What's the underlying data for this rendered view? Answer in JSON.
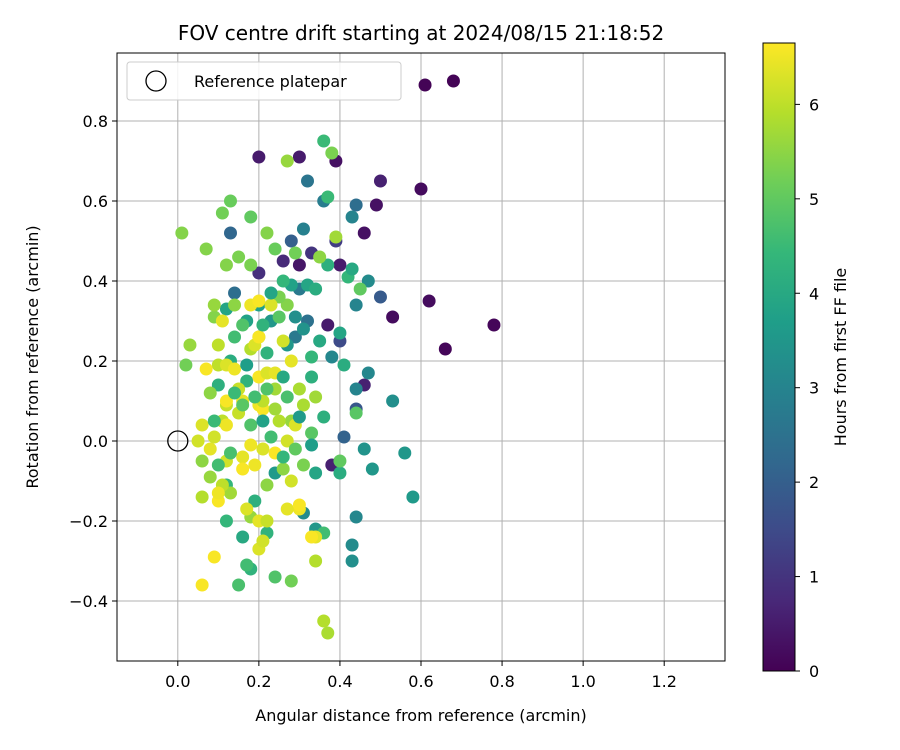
{
  "chart_data": {
    "type": "scatter",
    "title": "FOV centre drift starting at 2024/08/15 21:18:52",
    "xlabel": "Angular distance from reference (arcmin)",
    "ylabel": "Rotation from reference (arcmin)",
    "xlim": [
      -0.15,
      1.35
    ],
    "ylim": [
      -0.55,
      0.97
    ],
    "xticks": [
      0.0,
      0.2,
      0.4,
      0.6,
      0.8,
      1.0,
      1.2
    ],
    "xtick_labels": [
      "0.0",
      "0.2",
      "0.4",
      "0.6",
      "0.8",
      "1.0",
      "1.2"
    ],
    "yticks": [
      -0.4,
      -0.2,
      0.0,
      0.2,
      0.4,
      0.6,
      0.8
    ],
    "ytick_labels": [
      "−0.4",
      "−0.2",
      "0.0",
      "0.2",
      "0.4",
      "0.6",
      "0.8"
    ],
    "grid": true,
    "legend": {
      "position": "upper-left",
      "label": "Reference platepar"
    },
    "reference_point": {
      "x": 0.0,
      "y": 0.0
    },
    "colorbar": {
      "label": "Hours from first FF file",
      "colormap": "viridis",
      "range": [
        0,
        6.65
      ],
      "ticks": [
        0,
        1,
        2,
        3,
        4,
        5,
        6
      ],
      "tick_labels": [
        "0",
        "1",
        "2",
        "3",
        "4",
        "5",
        "6"
      ]
    },
    "points": [
      {
        "x": 0.61,
        "y": 0.89,
        "t": 0.05
      },
      {
        "x": 0.68,
        "y": 0.9,
        "t": 0.05
      },
      {
        "x": 0.78,
        "y": 0.29,
        "t": 0.1
      },
      {
        "x": 0.66,
        "y": 0.23,
        "t": 0.1
      },
      {
        "x": 0.62,
        "y": 0.35,
        "t": 0.2
      },
      {
        "x": 0.6,
        "y": 0.63,
        "t": 0.2
      },
      {
        "x": 0.53,
        "y": 0.31,
        "t": 0.2
      },
      {
        "x": 0.49,
        "y": 0.59,
        "t": 0.3
      },
      {
        "x": 0.46,
        "y": 0.52,
        "t": 0.3
      },
      {
        "x": 0.39,
        "y": 0.7,
        "t": 0.3
      },
      {
        "x": 0.5,
        "y": 0.65,
        "t": 0.6
      },
      {
        "x": 0.2,
        "y": 0.71,
        "t": 0.5
      },
      {
        "x": 0.3,
        "y": 0.71,
        "t": 0.5
      },
      {
        "x": 0.3,
        "y": 0.44,
        "t": 0.4
      },
      {
        "x": 0.37,
        "y": 0.29,
        "t": 0.5
      },
      {
        "x": 0.4,
        "y": 0.44,
        "t": 0.5
      },
      {
        "x": 0.46,
        "y": 0.14,
        "t": 0.6
      },
      {
        "x": 0.38,
        "y": -0.06,
        "t": 0.6
      },
      {
        "x": 0.26,
        "y": 0.45,
        "t": 0.8
      },
      {
        "x": 0.2,
        "y": 0.42,
        "t": 0.9
      },
      {
        "x": 0.33,
        "y": 0.47,
        "t": 1.0
      },
      {
        "x": 0.39,
        "y": 0.5,
        "t": 1.2
      },
      {
        "x": 0.4,
        "y": 0.25,
        "t": 1.5
      },
      {
        "x": 0.44,
        "y": 0.08,
        "t": 1.8
      },
      {
        "x": 0.41,
        "y": 0.01,
        "t": 2.1
      },
      {
        "x": 0.5,
        "y": 0.36,
        "t": 1.9
      },
      {
        "x": 0.13,
        "y": 0.52,
        "t": 2.2
      },
      {
        "x": 0.28,
        "y": 0.5,
        "t": 2.0
      },
      {
        "x": 0.14,
        "y": 0.37,
        "t": 2.4
      },
      {
        "x": 0.44,
        "y": 0.59,
        "t": 2.4
      },
      {
        "x": 0.32,
        "y": 0.65,
        "t": 2.6
      },
      {
        "x": 0.36,
        "y": 0.6,
        "t": 2.8
      },
      {
        "x": 0.31,
        "y": 0.53,
        "t": 2.9
      },
      {
        "x": 0.3,
        "y": 0.38,
        "t": 2.7
      },
      {
        "x": 0.29,
        "y": 0.26,
        "t": 2.7
      },
      {
        "x": 0.32,
        "y": 0.3,
        "t": 2.5
      },
      {
        "x": 0.44,
        "y": 0.34,
        "t": 3.0
      },
      {
        "x": 0.47,
        "y": 0.4,
        "t": 3.2
      },
      {
        "x": 0.43,
        "y": 0.56,
        "t": 3.0
      },
      {
        "x": 0.38,
        "y": 0.21,
        "t": 3.1
      },
      {
        "x": 0.44,
        "y": 0.13,
        "t": 3.0
      },
      {
        "x": 0.47,
        "y": 0.17,
        "t": 3.1
      },
      {
        "x": 0.53,
        "y": 0.1,
        "t": 3.3
      },
      {
        "x": 0.56,
        "y": -0.03,
        "t": 3.5
      },
      {
        "x": 0.58,
        "y": -0.14,
        "t": 3.6
      },
      {
        "x": 0.48,
        "y": -0.07,
        "t": 3.5
      },
      {
        "x": 0.46,
        "y": -0.02,
        "t": 3.4
      },
      {
        "x": 0.44,
        "y": -0.19,
        "t": 3.1
      },
      {
        "x": 0.43,
        "y": -0.26,
        "t": 3.2
      },
      {
        "x": 0.43,
        "y": -0.3,
        "t": 3.3
      },
      {
        "x": 0.34,
        "y": -0.22,
        "t": 3.5
      },
      {
        "x": 0.31,
        "y": -0.18,
        "t": 3.2
      },
      {
        "x": 0.24,
        "y": -0.08,
        "t": 3.6
      },
      {
        "x": 0.27,
        "y": 0.24,
        "t": 3.5
      },
      {
        "x": 0.23,
        "y": 0.3,
        "t": 3.5
      },
      {
        "x": 0.2,
        "y": 0.34,
        "t": 3.7
      },
      {
        "x": 0.17,
        "y": 0.3,
        "t": 3.8
      },
      {
        "x": 0.12,
        "y": 0.33,
        "t": 3.9
      },
      {
        "x": 0.28,
        "y": 0.39,
        "t": 3.8
      },
      {
        "x": 0.32,
        "y": 0.39,
        "t": 3.9
      },
      {
        "x": 0.35,
        "y": 0.25,
        "t": 4.0
      },
      {
        "x": 0.33,
        "y": 0.16,
        "t": 4.2
      },
      {
        "x": 0.41,
        "y": 0.19,
        "t": 4.1
      },
      {
        "x": 0.36,
        "y": 0.06,
        "t": 4.2
      },
      {
        "x": 0.34,
        "y": -0.08,
        "t": 3.9
      },
      {
        "x": 0.4,
        "y": -0.08,
        "t": 4.1
      },
      {
        "x": 0.37,
        "y": 0.44,
        "t": 4.2
      },
      {
        "x": 0.36,
        "y": 0.75,
        "t": 4.5
      },
      {
        "x": 0.37,
        "y": 0.61,
        "t": 4.5
      },
      {
        "x": 0.42,
        "y": 0.41,
        "t": 4.4
      },
      {
        "x": 0.43,
        "y": 0.43,
        "t": 4.0
      },
      {
        "x": 0.4,
        "y": 0.27,
        "t": 3.9
      },
      {
        "x": 0.33,
        "y": 0.21,
        "t": 4.4
      },
      {
        "x": 0.22,
        "y": 0.22,
        "t": 4.3
      },
      {
        "x": 0.17,
        "y": 0.15,
        "t": 4.3
      },
      {
        "x": 0.13,
        "y": 0.2,
        "t": 4.1
      },
      {
        "x": 0.1,
        "y": 0.14,
        "t": 4.2
      },
      {
        "x": 0.12,
        "y": -0.11,
        "t": 4.4
      },
      {
        "x": 0.19,
        "y": -0.15,
        "t": 4.2
      },
      {
        "x": 0.16,
        "y": -0.24,
        "t": 4.0
      },
      {
        "x": 0.18,
        "y": -0.32,
        "t": 4.3
      },
      {
        "x": 0.17,
        "y": -0.31,
        "t": 4.6
      },
      {
        "x": 0.12,
        "y": -0.2,
        "t": 4.4
      },
      {
        "x": 0.22,
        "y": -0.23,
        "t": 4.3
      },
      {
        "x": 0.15,
        "y": -0.36,
        "t": 4.7
      },
      {
        "x": 0.24,
        "y": -0.34,
        "t": 4.8
      },
      {
        "x": 0.28,
        "y": -0.35,
        "t": 5.2
      },
      {
        "x": 0.36,
        "y": -0.23,
        "t": 4.6
      },
      {
        "x": 0.4,
        "y": -0.05,
        "t": 5.0
      },
      {
        "x": 0.44,
        "y": 0.07,
        "t": 4.9
      },
      {
        "x": 0.45,
        "y": 0.38,
        "t": 5.0
      },
      {
        "x": 0.38,
        "y": 0.72,
        "t": 5.3
      },
      {
        "x": 0.27,
        "y": 0.7,
        "t": 5.6
      },
      {
        "x": 0.18,
        "y": 0.56,
        "t": 5.0
      },
      {
        "x": 0.13,
        "y": 0.6,
        "t": 5.1
      },
      {
        "x": 0.11,
        "y": 0.57,
        "t": 5.2
      },
      {
        "x": 0.24,
        "y": 0.48,
        "t": 5.1
      },
      {
        "x": 0.29,
        "y": 0.47,
        "t": 5.2
      },
      {
        "x": 0.07,
        "y": 0.48,
        "t": 5.4
      },
      {
        "x": 0.01,
        "y": 0.52,
        "t": 5.4
      },
      {
        "x": 0.15,
        "y": 0.46,
        "t": 5.3
      },
      {
        "x": 0.12,
        "y": 0.44,
        "t": 5.4
      },
      {
        "x": 0.18,
        "y": 0.44,
        "t": 5.3
      },
      {
        "x": 0.22,
        "y": 0.52,
        "t": 5.4
      },
      {
        "x": 0.35,
        "y": 0.46,
        "t": 5.5
      },
      {
        "x": 0.39,
        "y": 0.51,
        "t": 5.7
      },
      {
        "x": 0.27,
        "y": 0.34,
        "t": 5.4
      },
      {
        "x": 0.25,
        "y": 0.36,
        "t": 5.3
      },
      {
        "x": 0.14,
        "y": 0.34,
        "t": 5.5
      },
      {
        "x": 0.09,
        "y": 0.31,
        "t": 5.4
      },
      {
        "x": 0.09,
        "y": 0.34,
        "t": 5.6
      },
      {
        "x": 0.03,
        "y": 0.24,
        "t": 5.6
      },
      {
        "x": 0.02,
        "y": 0.19,
        "t": 5.2
      },
      {
        "x": 0.08,
        "y": 0.12,
        "t": 5.5
      },
      {
        "x": 0.06,
        "y": -0.05,
        "t": 5.5
      },
      {
        "x": 0.08,
        "y": -0.09,
        "t": 5.6
      },
      {
        "x": 0.13,
        "y": -0.13,
        "t": 5.7
      },
      {
        "x": 0.18,
        "y": -0.19,
        "t": 5.6
      },
      {
        "x": 0.22,
        "y": -0.11,
        "t": 5.5
      },
      {
        "x": 0.26,
        "y": -0.07,
        "t": 5.5
      },
      {
        "x": 0.28,
        "y": 0.05,
        "t": 5.6
      },
      {
        "x": 0.24,
        "y": 0.13,
        "t": 5.7
      },
      {
        "x": 0.3,
        "y": 0.13,
        "t": 5.8
      },
      {
        "x": 0.31,
        "y": 0.09,
        "t": 5.8
      },
      {
        "x": 0.34,
        "y": 0.11,
        "t": 5.7
      },
      {
        "x": 0.2,
        "y": 0.26,
        "t": 5.8
      },
      {
        "x": 0.18,
        "y": 0.23,
        "t": 5.9
      },
      {
        "x": 0.1,
        "y": 0.24,
        "t": 6.0
      },
      {
        "x": 0.1,
        "y": 0.19,
        "t": 6.0
      },
      {
        "x": 0.15,
        "y": 0.13,
        "t": 6.1
      },
      {
        "x": 0.15,
        "y": 0.07,
        "t": 6.1
      },
      {
        "x": 0.11,
        "y": 0.05,
        "t": 6.0
      },
      {
        "x": 0.12,
        "y": 0.09,
        "t": 6.1
      },
      {
        "x": 0.06,
        "y": -0.14,
        "t": 5.9
      },
      {
        "x": 0.11,
        "y": -0.11,
        "t": 6.0
      },
      {
        "x": 0.34,
        "y": -0.3,
        "t": 5.9
      },
      {
        "x": 0.36,
        "y": -0.45,
        "t": 5.9
      },
      {
        "x": 0.37,
        "y": -0.48,
        "t": 5.8
      },
      {
        "x": 0.2,
        "y": -0.27,
        "t": 6.3
      },
      {
        "x": 0.21,
        "y": -0.25,
        "t": 6.2
      },
      {
        "x": 0.28,
        "y": -0.1,
        "t": 6.2
      },
      {
        "x": 0.34,
        "y": -0.24,
        "t": 6.4
      },
      {
        "x": 0.3,
        "y": -0.17,
        "t": 6.5
      },
      {
        "x": 0.27,
        "y": -0.17,
        "t": 6.4
      },
      {
        "x": 0.1,
        "y": -0.15,
        "t": 6.6
      },
      {
        "x": 0.1,
        "y": -0.13,
        "t": 6.5
      },
      {
        "x": 0.09,
        "y": -0.29,
        "t": 6.6
      },
      {
        "x": 0.06,
        "y": -0.36,
        "t": 6.6
      },
      {
        "x": 0.06,
        "y": 0.04,
        "t": 6.3
      },
      {
        "x": 0.05,
        "y": 0.0,
        "t": 6.2
      },
      {
        "x": 0.08,
        "y": -0.02,
        "t": 6.4
      },
      {
        "x": 0.09,
        "y": 0.01,
        "t": 6.2
      },
      {
        "x": 0.12,
        "y": 0.04,
        "t": 6.5
      },
      {
        "x": 0.12,
        "y": 0.1,
        "t": 6.6
      },
      {
        "x": 0.16,
        "y": 0.1,
        "t": 6.4
      },
      {
        "x": 0.2,
        "y": 0.09,
        "t": 6.5
      },
      {
        "x": 0.21,
        "y": 0.08,
        "t": 6.6
      },
      {
        "x": 0.2,
        "y": 0.16,
        "t": 6.6
      },
      {
        "x": 0.22,
        "y": 0.17,
        "t": 6.3
      },
      {
        "x": 0.24,
        "y": 0.17,
        "t": 6.4
      },
      {
        "x": 0.19,
        "y": 0.24,
        "t": 6.3
      },
      {
        "x": 0.2,
        "y": 0.26,
        "t": 6.6
      },
      {
        "x": 0.11,
        "y": 0.3,
        "t": 6.4
      },
      {
        "x": 0.18,
        "y": 0.34,
        "t": 6.5
      },
      {
        "x": 0.2,
        "y": 0.35,
        "t": 6.6
      },
      {
        "x": 0.23,
        "y": 0.34,
        "t": 6.3
      },
      {
        "x": 0.26,
        "y": 0.25,
        "t": 6.2
      },
      {
        "x": 0.28,
        "y": 0.2,
        "t": 6.4
      },
      {
        "x": 0.07,
        "y": 0.18,
        "t": 6.6
      },
      {
        "x": 0.12,
        "y": 0.19,
        "t": 6.3
      },
      {
        "x": 0.14,
        "y": 0.18,
        "t": 6.5
      },
      {
        "x": 0.16,
        "y": -0.04,
        "t": 6.4
      },
      {
        "x": 0.18,
        "y": -0.01,
        "t": 6.5
      },
      {
        "x": 0.21,
        "y": -0.02,
        "t": 6.3
      },
      {
        "x": 0.24,
        "y": -0.03,
        "t": 6.6
      },
      {
        "x": 0.27,
        "y": 0.0,
        "t": 6.2
      },
      {
        "x": 0.29,
        "y": 0.04,
        "t": 6.3
      },
      {
        "x": 0.19,
        "y": -0.06,
        "t": 6.5
      },
      {
        "x": 0.16,
        "y": -0.07,
        "t": 6.6
      },
      {
        "x": 0.12,
        "y": -0.05,
        "t": 6.2
      },
      {
        "x": 0.2,
        "y": -0.2,
        "t": 6.4
      },
      {
        "x": 0.22,
        "y": -0.2,
        "t": 6.1
      },
      {
        "x": 0.17,
        "y": -0.17,
        "t": 6.3
      },
      {
        "x": 0.3,
        "y": -0.16,
        "t": 6.6
      },
      {
        "x": 0.33,
        "y": -0.24,
        "t": 6.6
      },
      {
        "x": 0.21,
        "y": 0.1,
        "t": 6.0
      },
      {
        "x": 0.25,
        "y": 0.05,
        "t": 5.9
      },
      {
        "x": 0.24,
        "y": 0.08,
        "t": 5.7
      },
      {
        "x": 0.31,
        "y": -0.06,
        "t": 5.3
      },
      {
        "x": 0.29,
        "y": -0.02,
        "t": 5.0
      },
      {
        "x": 0.33,
        "y": 0.02,
        "t": 4.9
      },
      {
        "x": 0.27,
        "y": 0.11,
        "t": 4.7
      },
      {
        "x": 0.22,
        "y": 0.13,
        "t": 4.8
      },
      {
        "x": 0.19,
        "y": 0.11,
        "t": 4.6
      },
      {
        "x": 0.16,
        "y": 0.09,
        "t": 4.9
      },
      {
        "x": 0.14,
        "y": 0.12,
        "t": 4.5
      },
      {
        "x": 0.18,
        "y": 0.04,
        "t": 4.8
      },
      {
        "x": 0.23,
        "y": 0.01,
        "t": 4.6
      },
      {
        "x": 0.26,
        "y": -0.04,
        "t": 4.4
      },
      {
        "x": 0.13,
        "y": -0.03,
        "t": 4.7
      },
      {
        "x": 0.09,
        "y": 0.05,
        "t": 4.5
      },
      {
        "x": 0.1,
        "y": -0.06,
        "t": 4.6
      },
      {
        "x": 0.14,
        "y": 0.26,
        "t": 4.6
      },
      {
        "x": 0.16,
        "y": 0.29,
        "t": 4.8
      },
      {
        "x": 0.21,
        "y": 0.29,
        "t": 4.3
      },
      {
        "x": 0.25,
        "y": 0.31,
        "t": 4.9
      },
      {
        "x": 0.26,
        "y": 0.4,
        "t": 4.4
      },
      {
        "x": 0.34,
        "y": 0.38,
        "t": 4.1
      },
      {
        "x": 0.23,
        "y": 0.37,
        "t": 3.9
      },
      {
        "x": 0.21,
        "y": 0.05,
        "t": 3.8
      },
      {
        "x": 0.17,
        "y": 0.19,
        "t": 3.7
      },
      {
        "x": 0.3,
        "y": 0.06,
        "t": 3.6
      },
      {
        "x": 0.31,
        "y": 0.28,
        "t": 3.4
      },
      {
        "x": 0.29,
        "y": 0.31,
        "t": 3.3
      },
      {
        "x": 0.33,
        "y": -0.01,
        "t": 3.7
      },
      {
        "x": 0.26,
        "y": 0.16,
        "t": 4.0
      }
    ]
  }
}
